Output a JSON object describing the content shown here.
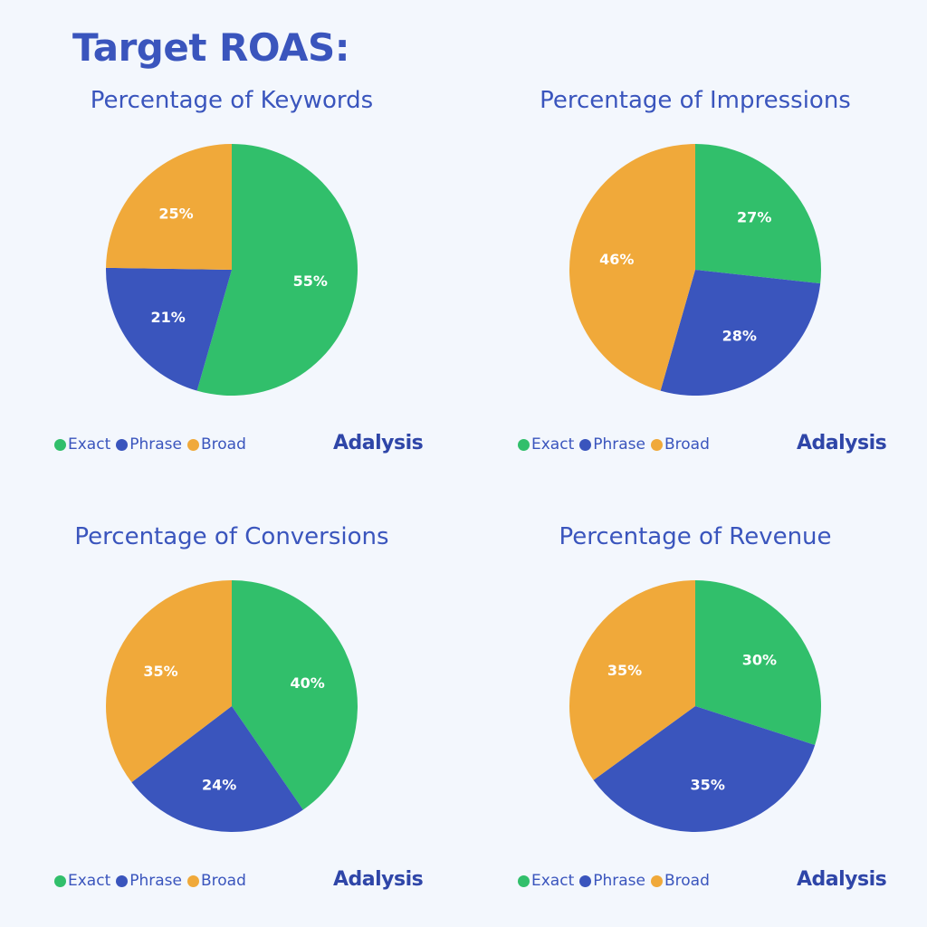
{
  "title": "Target ROAS:",
  "logo_text": "Adalysis",
  "colors": {
    "Exact": "#31bf6b",
    "Phrase": "#3a55bd",
    "Broad": "#f0a93a",
    "background": "#f3f7fd"
  },
  "chart_data": [
    {
      "type": "pie",
      "title": "Percentage of Keywords",
      "labels": [
        "Exact",
        "Phrase",
        "Broad"
      ],
      "values": [
        55,
        21,
        25
      ],
      "data_labels": [
        "55%",
        "21%",
        "25%"
      ],
      "legend": "bottom-left",
      "start": "top",
      "direction": "clockwise"
    },
    {
      "type": "pie",
      "title": "Percentage of Impressions",
      "labels": [
        "Exact",
        "Phrase",
        "Broad"
      ],
      "values": [
        27,
        28,
        46
      ],
      "data_labels": [
        "27%",
        "28%",
        "46%"
      ],
      "legend": "bottom-left",
      "start": "top",
      "direction": "clockwise"
    },
    {
      "type": "pie",
      "title": "Percentage of Conversions",
      "labels": [
        "Exact",
        "Phrase",
        "Broad"
      ],
      "values": [
        40,
        24,
        35
      ],
      "data_labels": [
        "40%",
        "24%",
        "35%"
      ],
      "legend": "bottom-left",
      "start": "top",
      "direction": "clockwise"
    },
    {
      "type": "pie",
      "title": "Percentage of Revenue",
      "labels": [
        "Exact",
        "Phrase",
        "Broad"
      ],
      "values": [
        30,
        35,
        35
      ],
      "data_labels": [
        "30%",
        "35%",
        "35%"
      ],
      "legend": "bottom-left",
      "start": "top",
      "direction": "clockwise"
    }
  ]
}
